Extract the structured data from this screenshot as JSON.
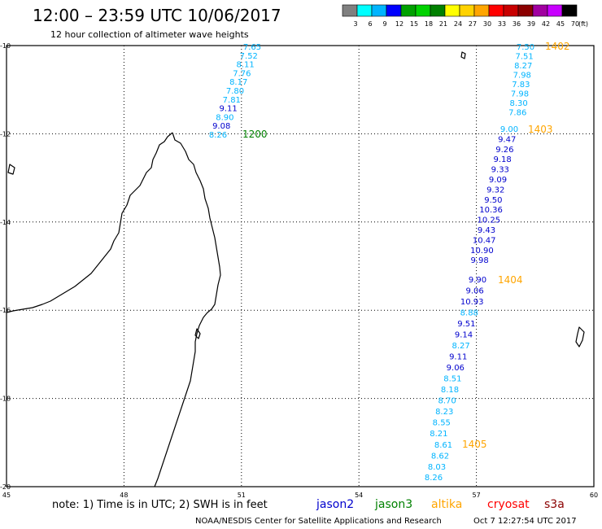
{
  "header": {
    "title": "12:00 – 23:59 UTC 10/06/2017",
    "subtitle": "12 hour collection of altimeter wave heights"
  },
  "colorbar": {
    "labels": [
      "3",
      "6",
      "9",
      "12",
      "15",
      "18",
      "21",
      "24",
      "27",
      "30",
      "33",
      "36",
      "39",
      "42",
      "45",
      "70"
    ],
    "unit": "(ft)",
    "colors": [
      "#808080",
      "#00ffff",
      "#00b4ff",
      "#0000ff",
      "#00a000",
      "#00d200",
      "#008000",
      "#ffff00",
      "#ffd200",
      "#ffa500",
      "#ff0000",
      "#c80000",
      "#8b0000",
      "#a000a0",
      "#c800ff",
      "#000000"
    ]
  },
  "map": {
    "lon_range": [
      45,
      60
    ],
    "lat_range": [
      -20,
      -10
    ],
    "lat_labels": [
      "-10",
      "-12",
      "-14",
      "-16",
      "-18",
      "-20"
    ],
    "lon_labels": [
      "45",
      "48",
      "51",
      "54",
      "57",
      "60"
    ]
  },
  "tracks": [
    {
      "pass_label": "1200",
      "pass_color": "#008000",
      "points": [
        {
          "v": "7.65",
          "c": "#00b4ff"
        },
        {
          "v": "7.52",
          "c": "#00b4ff"
        },
        {
          "v": "8.11",
          "c": "#00b4ff"
        },
        {
          "v": "7.76",
          "c": "#00b4ff"
        },
        {
          "v": "8.17",
          "c": "#00b4ff"
        },
        {
          "v": "7.80",
          "c": "#00b4ff"
        },
        {
          "v": "7.81",
          "c": "#00b4ff"
        },
        {
          "v": "9.11",
          "c": "#0000cd"
        },
        {
          "v": "8.90",
          "c": "#00b4ff"
        },
        {
          "v": "9.08",
          "c": "#0000cd"
        },
        {
          "v": "8.26",
          "c": "#00b4ff"
        }
      ]
    },
    {
      "pass_label": "1402",
      "pass_color": "#ffa500",
      "points": [
        {
          "v": "7.50",
          "c": "#00b4ff"
        },
        {
          "v": "7.51",
          "c": "#00b4ff"
        },
        {
          "v": "8.27",
          "c": "#00b4ff"
        },
        {
          "v": "7.98",
          "c": "#00b4ff"
        },
        {
          "v": "7.83",
          "c": "#00b4ff"
        },
        {
          "v": "7.98",
          "c": "#00b4ff"
        },
        {
          "v": "8.30",
          "c": "#00b4ff"
        },
        {
          "v": "7.86",
          "c": "#00b4ff"
        }
      ]
    },
    {
      "pass_label": "1403",
      "pass_color": "#ffa500",
      "points": [
        {
          "v": "9.00",
          "c": "#00b4ff"
        },
        {
          "v": "9.47",
          "c": "#0000cd"
        },
        {
          "v": "9.26",
          "c": "#0000cd"
        },
        {
          "v": "9.18",
          "c": "#0000cd"
        },
        {
          "v": "9.33",
          "c": "#0000cd"
        },
        {
          "v": "9.09",
          "c": "#0000cd"
        },
        {
          "v": "9.32",
          "c": "#0000cd"
        },
        {
          "v": "9.50",
          "c": "#0000cd"
        },
        {
          "v": "10.36",
          "c": "#0000cd"
        },
        {
          "v": "10.25",
          "c": "#0000cd"
        },
        {
          "v": "9.43",
          "c": "#0000cd"
        },
        {
          "v": "10.47",
          "c": "#0000cd"
        },
        {
          "v": "10.90",
          "c": "#0000cd"
        },
        {
          "v": "9.98",
          "c": "#0000cd"
        }
      ]
    },
    {
      "pass_label": "1404",
      "pass_color": "#ffa500",
      "points": [
        {
          "v": "9.90",
          "c": "#0000cd"
        },
        {
          "v": "9.06",
          "c": "#0000cd"
        },
        {
          "v": "10.93",
          "c": "#0000cd"
        },
        {
          "v": "8.88",
          "c": "#00b4ff"
        },
        {
          "v": "9.51",
          "c": "#0000cd"
        },
        {
          "v": "9.14",
          "c": "#0000cd"
        },
        {
          "v": "8.27",
          "c": "#00b4ff"
        },
        {
          "v": "9.11",
          "c": "#0000cd"
        },
        {
          "v": "9.06",
          "c": "#0000cd"
        },
        {
          "v": "8.51",
          "c": "#00b4ff"
        },
        {
          "v": "8.18",
          "c": "#00b4ff"
        },
        {
          "v": "8.70",
          "c": "#00b4ff"
        },
        {
          "v": "8.23",
          "c": "#00b4ff"
        },
        {
          "v": "8.55",
          "c": "#00b4ff"
        },
        {
          "v": "8.21",
          "c": "#00b4ff"
        }
      ]
    },
    {
      "pass_label": "1405",
      "pass_color": "#ffa500",
      "points": [
        {
          "v": "8.61",
          "c": "#00b4ff"
        },
        {
          "v": "8.62",
          "c": "#00b4ff"
        },
        {
          "v": "8.03",
          "c": "#00b4ff"
        },
        {
          "v": "8.26",
          "c": "#00b4ff"
        }
      ]
    }
  ],
  "note": "note: 1) Time is in UTC; 2) SWH is in feet",
  "legend": [
    {
      "name": "jason2",
      "color": "#0000cd"
    },
    {
      "name": "jason3",
      "color": "#008000"
    },
    {
      "name": "altika",
      "color": "#ffa500"
    },
    {
      "name": "cryosat",
      "color": "#ff0000"
    },
    {
      "name": "s3a",
      "color": "#8b0000"
    }
  ],
  "footer": {
    "credit": "NOAA/NESDIS Center for Satellite Applications and Research",
    "timestamp": "Oct  7 12:27:54 UTC 2017"
  }
}
